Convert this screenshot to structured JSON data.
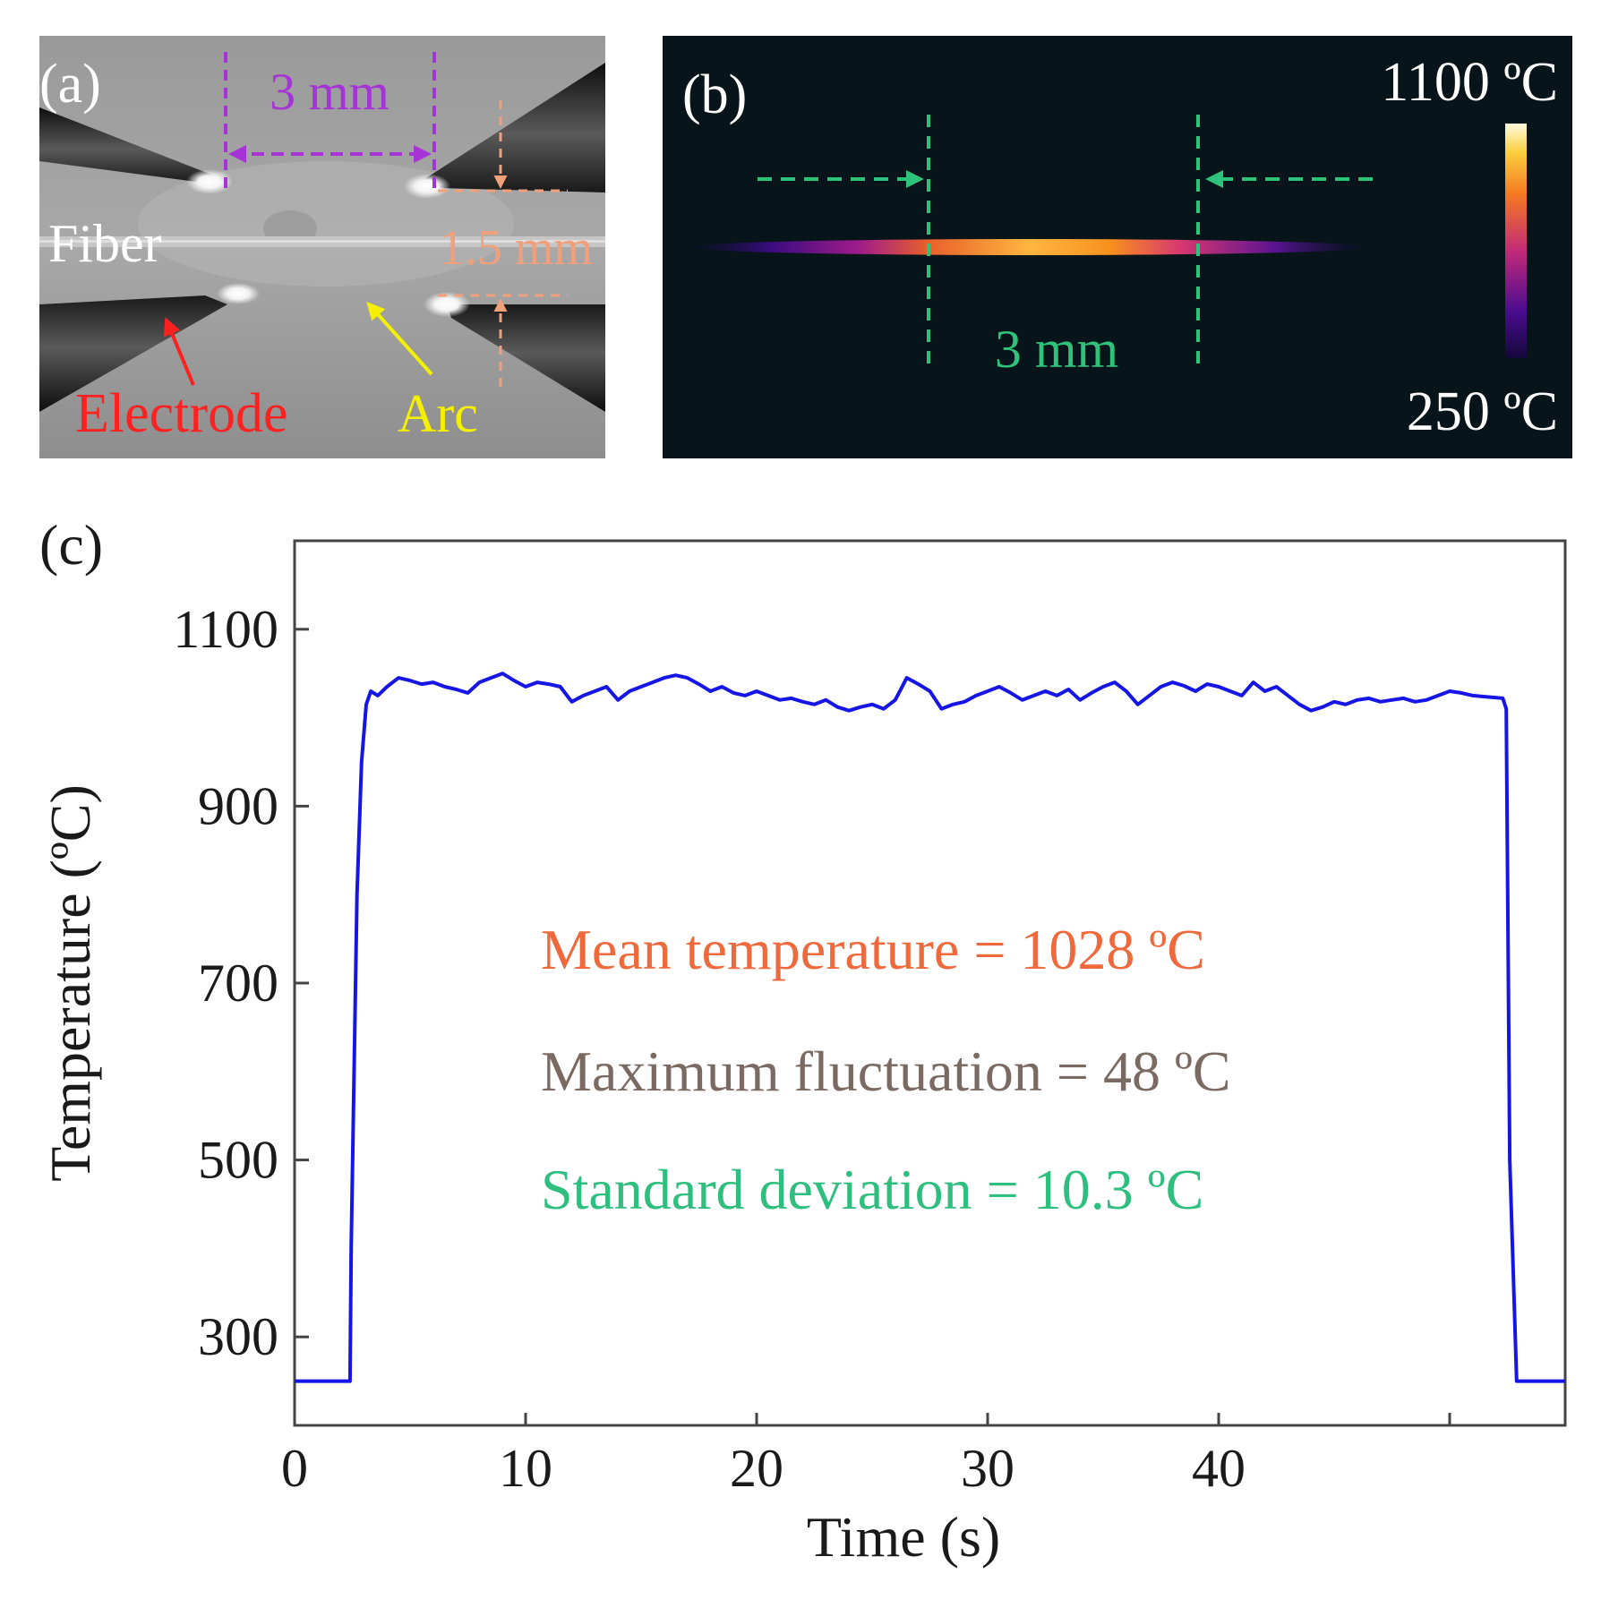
{
  "panel_a": {
    "label": "(a)",
    "dim_gap": "3 mm",
    "dim_height": "1.5 mm",
    "fiber_label": "Fiber",
    "electrode_label": "Electrode",
    "arc_label": "Arc",
    "colors": {
      "gap": "#a633d6",
      "height": "#f0a07a",
      "electrode": "#ff2020",
      "arc": "#f5f000",
      "fiber": "#ffffff"
    }
  },
  "panel_b": {
    "label": "(b)",
    "dim_gap": "3 mm",
    "scale_max": "1100 ºC",
    "scale_min": "250 ºC",
    "colors": {
      "marker": "#2ec27a",
      "background": "#07141a"
    }
  },
  "chart_data": {
    "type": "line",
    "panel_label": "(c)",
    "title": "",
    "xlabel": "Time (s)",
    "ylabel": "Temperature (ºC)",
    "xlim": [
      0,
      55
    ],
    "ylim": [
      200,
      1200
    ],
    "xticks": [
      0,
      10,
      20,
      30,
      40
    ],
    "yticks": [
      300,
      500,
      700,
      900,
      1100
    ],
    "grid": false,
    "series": [
      {
        "name": "Temperature",
        "color": "#1515e6",
        "x": [
          0,
          2.4,
          2.45,
          2.7,
          2.9,
          3.1,
          3.3,
          3.6,
          4.0,
          4.5,
          5.0,
          5.5,
          6.0,
          6.5,
          7.0,
          7.5,
          8.0,
          8.5,
          9.0,
          9.5,
          10.0,
          10.5,
          11.0,
          11.5,
          12.0,
          12.5,
          13.0,
          13.5,
          14.0,
          14.5,
          15.0,
          15.5,
          16.0,
          16.5,
          17.0,
          17.5,
          18.0,
          18.5,
          19.0,
          19.5,
          20.0,
          20.5,
          21.0,
          21.5,
          22.0,
          22.5,
          23.0,
          23.5,
          24.0,
          24.5,
          25.0,
          25.5,
          26.0,
          26.5,
          27.0,
          27.5,
          28.0,
          28.5,
          29.0,
          29.5,
          30.0,
          30.5,
          31.0,
          31.5,
          32.0,
          32.5,
          33.0,
          33.5,
          34.0,
          34.5,
          35.0,
          35.5,
          36.0,
          36.5,
          37.0,
          37.5,
          38.0,
          38.5,
          39.0,
          39.5,
          40.0,
          40.5,
          41.0,
          41.5,
          42.0,
          42.5,
          43.0,
          43.5,
          44.0,
          44.5,
          45.0,
          45.5,
          46.0,
          46.5,
          47.0,
          47.5,
          48.0,
          48.5,
          49.0,
          49.5,
          50.0,
          50.5,
          51.0,
          52.3,
          52.45,
          52.6,
          52.9,
          55.0
        ],
        "values": [
          250,
          250,
          400,
          800,
          950,
          1015,
          1030,
          1025,
          1035,
          1045,
          1042,
          1038,
          1040,
          1035,
          1032,
          1028,
          1040,
          1045,
          1050,
          1042,
          1035,
          1040,
          1038,
          1035,
          1018,
          1025,
          1030,
          1035,
          1020,
          1030,
          1035,
          1040,
          1045,
          1048,
          1045,
          1038,
          1030,
          1035,
          1028,
          1025,
          1030,
          1025,
          1020,
          1022,
          1018,
          1015,
          1020,
          1012,
          1008,
          1012,
          1015,
          1010,
          1020,
          1045,
          1038,
          1030,
          1010,
          1015,
          1018,
          1025,
          1030,
          1035,
          1028,
          1020,
          1025,
          1030,
          1025,
          1032,
          1020,
          1028,
          1035,
          1040,
          1030,
          1015,
          1025,
          1035,
          1040,
          1036,
          1030,
          1038,
          1035,
          1030,
          1025,
          1040,
          1030,
          1035,
          1025,
          1015,
          1008,
          1012,
          1018,
          1015,
          1020,
          1022,
          1018,
          1020,
          1022,
          1018,
          1020,
          1025,
          1030,
          1028,
          1025,
          1022,
          1010,
          500,
          250,
          250
        ]
      }
    ],
    "annotations": [
      {
        "text": "Mean temperature = 1028 ºC",
        "color": "#ee6a3c"
      },
      {
        "text": "Maximum fluctuation = 48 ºC",
        "color": "#7a6a62"
      },
      {
        "text": "Standard deviation = 10.3 ºC",
        "color": "#2ebf7e"
      }
    ]
  }
}
